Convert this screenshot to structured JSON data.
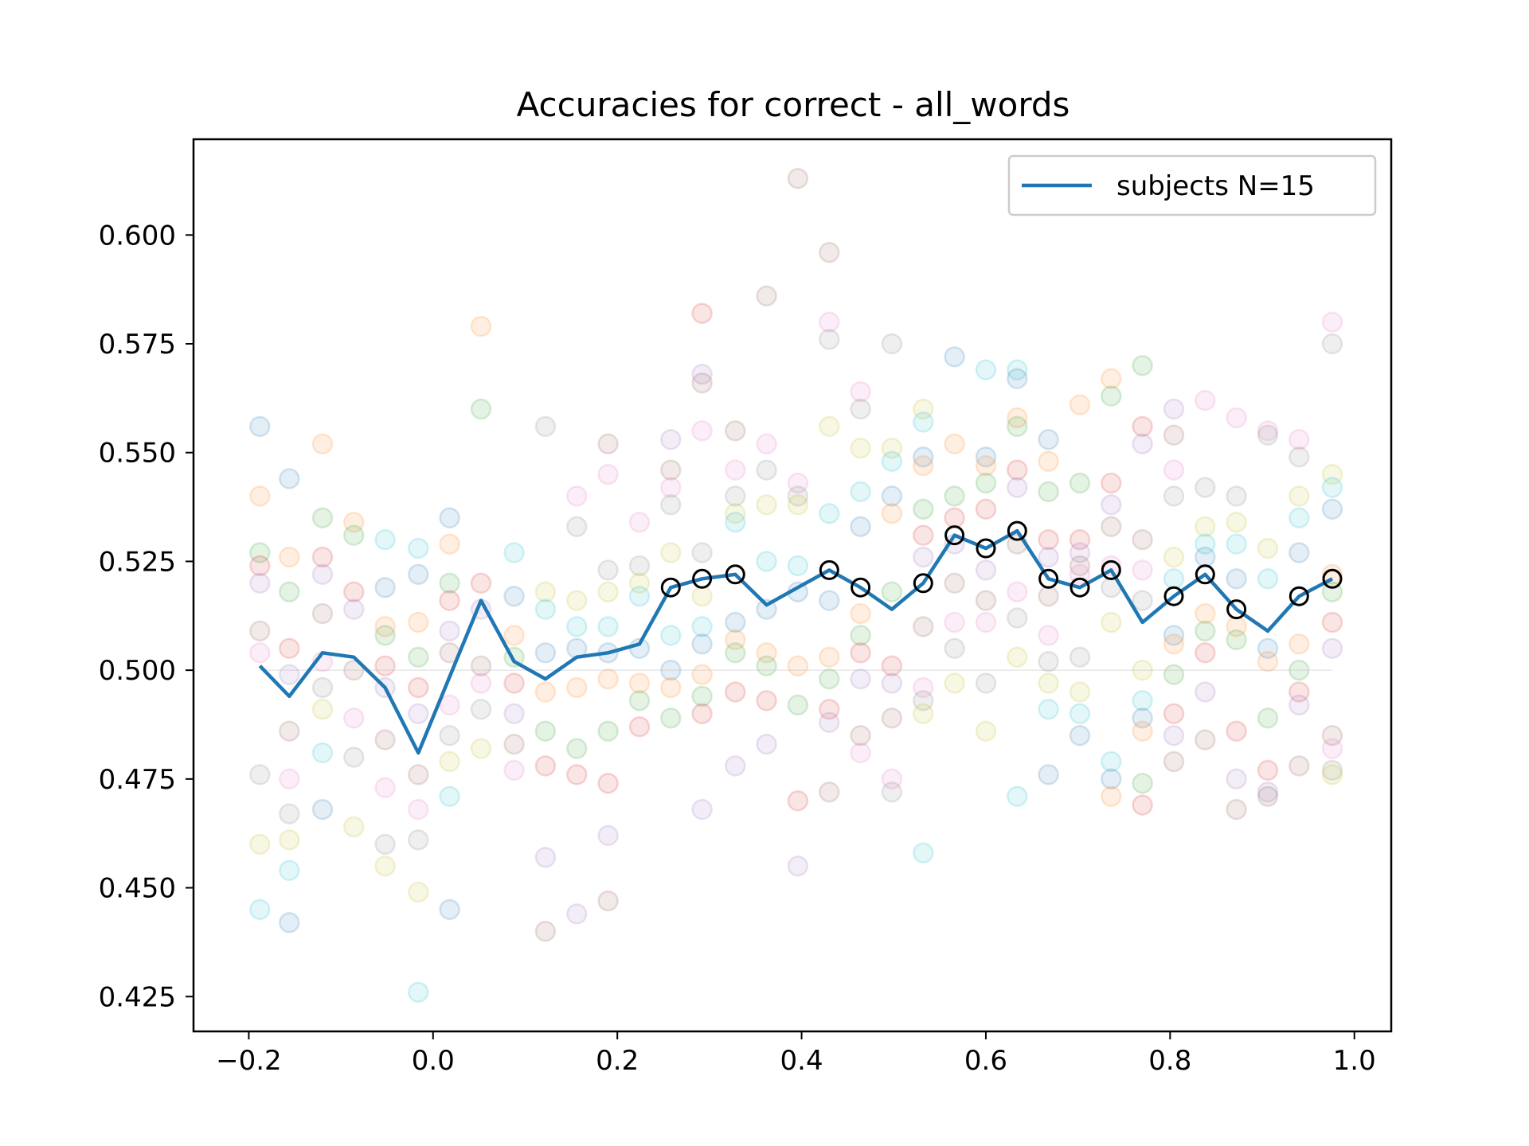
{
  "chart_data": {
    "type": "line",
    "title": "Accuracies for correct - all_words",
    "xlabel": "",
    "ylabel": "",
    "xlim": [
      -0.26,
      1.04
    ],
    "ylim": [
      0.417,
      0.622
    ],
    "x_ticks": [
      -0.2,
      0.0,
      0.2,
      0.4,
      0.6,
      0.8,
      1.0
    ],
    "x_tick_labels": [
      "−0.2",
      "0.0",
      "0.2",
      "0.4",
      "0.6",
      "0.8",
      "1.0"
    ],
    "y_ticks": [
      0.425,
      0.45,
      0.475,
      0.5,
      0.525,
      0.55,
      0.575,
      0.6
    ],
    "y_tick_labels": [
      "0.425",
      "0.450",
      "0.475",
      "0.500",
      "0.525",
      "0.550",
      "0.575",
      "0.600"
    ],
    "chance_level": 0.5,
    "grid": false,
    "legend": {
      "position": "top-right",
      "entries": [
        {
          "label": "subjects N=15",
          "color": "#1f77b4"
        }
      ]
    },
    "series": [
      {
        "name": "subjects N=15",
        "color": "#1f77b4",
        "x": [
          -0.188,
          -0.156,
          -0.12,
          -0.086,
          -0.052,
          -0.016,
          0.052,
          0.088,
          0.122,
          0.156,
          0.19,
          0.224,
          0.258,
          0.292,
          0.328,
          0.362,
          0.396,
          0.43,
          0.464,
          0.498,
          0.532,
          0.566,
          0.6,
          0.634,
          0.668,
          0.702,
          0.736,
          0.77,
          0.804,
          0.838,
          0.872,
          0.906,
          0.94,
          0.976
        ],
        "values": [
          0.501,
          0.494,
          0.504,
          0.503,
          0.496,
          0.481,
          0.516,
          0.502,
          0.498,
          0.503,
          0.504,
          0.506,
          0.519,
          0.521,
          0.522,
          0.515,
          0.519,
          0.523,
          0.519,
          0.514,
          0.52,
          0.531,
          0.528,
          0.532,
          0.521,
          0.519,
          0.523,
          0.511,
          0.517,
          0.522,
          0.514,
          0.509,
          0.517,
          0.521
        ]
      }
    ],
    "significant_x": [
      0.258,
      0.292,
      0.328,
      0.43,
      0.464,
      0.532,
      0.566,
      0.6,
      0.634,
      0.668,
      0.702,
      0.736,
      0.804,
      0.838,
      0.872,
      0.94,
      0.976
    ],
    "significant_marker_color": "#000000",
    "subject_colors": [
      "#1f77b4",
      "#ff7f0e",
      "#2ca02c",
      "#d62728",
      "#9467bd",
      "#8c564b",
      "#e377c2",
      "#7f7f7f",
      "#bcbd22",
      "#17becf"
    ],
    "subject_points": [
      [
        -0.188,
        0.556
      ],
      [
        -0.188,
        0.54
      ],
      [
        -0.188,
        0.527
      ],
      [
        -0.188,
        0.524
      ],
      [
        -0.188,
        0.52
      ],
      [
        -0.188,
        0.509
      ],
      [
        -0.188,
        0.504
      ],
      [
        -0.188,
        0.476
      ],
      [
        -0.188,
        0.46
      ],
      [
        -0.188,
        0.445
      ],
      [
        -0.156,
        0.544
      ],
      [
        -0.156,
        0.526
      ],
      [
        -0.156,
        0.518
      ],
      [
        -0.156,
        0.505
      ],
      [
        -0.156,
        0.499
      ],
      [
        -0.156,
        0.486
      ],
      [
        -0.156,
        0.475
      ],
      [
        -0.156,
        0.467
      ],
      [
        -0.156,
        0.461
      ],
      [
        -0.156,
        0.454
      ],
      [
        -0.156,
        0.442
      ],
      [
        -0.12,
        0.552
      ],
      [
        -0.12,
        0.535
      ],
      [
        -0.12,
        0.526
      ],
      [
        -0.12,
        0.522
      ],
      [
        -0.12,
        0.513
      ],
      [
        -0.12,
        0.502
      ],
      [
        -0.12,
        0.496
      ],
      [
        -0.12,
        0.491
      ],
      [
        -0.12,
        0.481
      ],
      [
        -0.12,
        0.468
      ],
      [
        -0.086,
        0.534
      ],
      [
        -0.086,
        0.531
      ],
      [
        -0.086,
        0.518
      ],
      [
        -0.086,
        0.514
      ],
      [
        -0.086,
        0.5
      ],
      [
        -0.086,
        0.489
      ],
      [
        -0.086,
        0.48
      ],
      [
        -0.086,
        0.464
      ],
      [
        -0.052,
        0.53
      ],
      [
        -0.052,
        0.519
      ],
      [
        -0.052,
        0.51
      ],
      [
        -0.052,
        0.508
      ],
      [
        -0.052,
        0.501
      ],
      [
        -0.052,
        0.496
      ],
      [
        -0.052,
        0.484
      ],
      [
        -0.052,
        0.473
      ],
      [
        -0.052,
        0.46
      ],
      [
        -0.052,
        0.455
      ],
      [
        -0.016,
        0.528
      ],
      [
        -0.016,
        0.522
      ],
      [
        -0.016,
        0.511
      ],
      [
        -0.016,
        0.503
      ],
      [
        -0.016,
        0.496
      ],
      [
        -0.016,
        0.49
      ],
      [
        -0.016,
        0.476
      ],
      [
        -0.016,
        0.468
      ],
      [
        -0.016,
        0.461
      ],
      [
        -0.016,
        0.449
      ],
      [
        -0.016,
        0.426
      ],
      [
        0.018,
        0.535
      ],
      [
        0.018,
        0.529
      ],
      [
        0.018,
        0.52
      ],
      [
        0.018,
        0.516
      ],
      [
        0.018,
        0.509
      ],
      [
        0.018,
        0.504
      ],
      [
        0.018,
        0.492
      ],
      [
        0.018,
        0.485
      ],
      [
        0.018,
        0.479
      ],
      [
        0.018,
        0.471
      ],
      [
        0.018,
        0.445
      ],
      [
        0.052,
        0.579
      ],
      [
        0.052,
        0.56
      ],
      [
        0.052,
        0.52
      ],
      [
        0.052,
        0.514
      ],
      [
        0.052,
        0.501
      ],
      [
        0.052,
        0.497
      ],
      [
        0.052,
        0.491
      ],
      [
        0.052,
        0.482
      ],
      [
        0.088,
        0.527
      ],
      [
        0.088,
        0.517
      ],
      [
        0.088,
        0.508
      ],
      [
        0.088,
        0.503
      ],
      [
        0.088,
        0.497
      ],
      [
        0.088,
        0.49
      ],
      [
        0.088,
        0.483
      ],
      [
        0.088,
        0.477
      ],
      [
        0.122,
        0.556
      ],
      [
        0.122,
        0.518
      ],
      [
        0.122,
        0.514
      ],
      [
        0.122,
        0.504
      ],
      [
        0.122,
        0.495
      ],
      [
        0.122,
        0.486
      ],
      [
        0.122,
        0.478
      ],
      [
        0.122,
        0.457
      ],
      [
        0.122,
        0.44
      ],
      [
        0.156,
        0.54
      ],
      [
        0.156,
        0.533
      ],
      [
        0.156,
        0.516
      ],
      [
        0.156,
        0.51
      ],
      [
        0.156,
        0.505
      ],
      [
        0.156,
        0.496
      ],
      [
        0.156,
        0.482
      ],
      [
        0.156,
        0.476
      ],
      [
        0.156,
        0.444
      ],
      [
        0.19,
        0.552
      ],
      [
        0.19,
        0.545
      ],
      [
        0.19,
        0.523
      ],
      [
        0.19,
        0.518
      ],
      [
        0.19,
        0.51
      ],
      [
        0.19,
        0.504
      ],
      [
        0.19,
        0.498
      ],
      [
        0.19,
        0.486
      ],
      [
        0.19,
        0.474
      ],
      [
        0.19,
        0.462
      ],
      [
        0.19,
        0.447
      ],
      [
        0.224,
        0.534
      ],
      [
        0.224,
        0.524
      ],
      [
        0.224,
        0.52
      ],
      [
        0.224,
        0.517
      ],
      [
        0.224,
        0.505
      ],
      [
        0.224,
        0.497
      ],
      [
        0.224,
        0.493
      ],
      [
        0.224,
        0.487
      ],
      [
        0.258,
        0.553
      ],
      [
        0.258,
        0.546
      ],
      [
        0.258,
        0.542
      ],
      [
        0.258,
        0.538
      ],
      [
        0.258,
        0.527
      ],
      [
        0.258,
        0.508
      ],
      [
        0.258,
        0.5
      ],
      [
        0.258,
        0.496
      ],
      [
        0.258,
        0.489
      ],
      [
        0.292,
        0.582
      ],
      [
        0.292,
        0.568
      ],
      [
        0.292,
        0.566
      ],
      [
        0.292,
        0.555
      ],
      [
        0.292,
        0.527
      ],
      [
        0.292,
        0.517
      ],
      [
        0.292,
        0.51
      ],
      [
        0.292,
        0.506
      ],
      [
        0.292,
        0.499
      ],
      [
        0.292,
        0.494
      ],
      [
        0.292,
        0.49
      ],
      [
        0.292,
        0.468
      ],
      [
        0.328,
        0.555
      ],
      [
        0.328,
        0.546
      ],
      [
        0.328,
        0.54
      ],
      [
        0.328,
        0.536
      ],
      [
        0.328,
        0.534
      ],
      [
        0.328,
        0.511
      ],
      [
        0.328,
        0.507
      ],
      [
        0.328,
        0.504
      ],
      [
        0.328,
        0.495
      ],
      [
        0.328,
        0.478
      ],
      [
        0.362,
        0.586
      ],
      [
        0.362,
        0.552
      ],
      [
        0.362,
        0.546
      ],
      [
        0.362,
        0.538
      ],
      [
        0.362,
        0.525
      ],
      [
        0.362,
        0.514
      ],
      [
        0.362,
        0.504
      ],
      [
        0.362,
        0.501
      ],
      [
        0.362,
        0.493
      ],
      [
        0.362,
        0.483
      ],
      [
        0.396,
        0.613
      ],
      [
        0.396,
        0.543
      ],
      [
        0.396,
        0.54
      ],
      [
        0.396,
        0.538
      ],
      [
        0.396,
        0.524
      ],
      [
        0.396,
        0.518
      ],
      [
        0.396,
        0.501
      ],
      [
        0.396,
        0.492
      ],
      [
        0.396,
        0.47
      ],
      [
        0.396,
        0.455
      ],
      [
        0.43,
        0.596
      ],
      [
        0.43,
        0.58
      ],
      [
        0.43,
        0.576
      ],
      [
        0.43,
        0.556
      ],
      [
        0.43,
        0.536
      ],
      [
        0.43,
        0.516
      ],
      [
        0.43,
        0.503
      ],
      [
        0.43,
        0.498
      ],
      [
        0.43,
        0.491
      ],
      [
        0.43,
        0.488
      ],
      [
        0.43,
        0.472
      ],
      [
        0.464,
        0.564
      ],
      [
        0.464,
        0.56
      ],
      [
        0.464,
        0.551
      ],
      [
        0.464,
        0.541
      ],
      [
        0.464,
        0.533
      ],
      [
        0.464,
        0.513
      ],
      [
        0.464,
        0.508
      ],
      [
        0.464,
        0.504
      ],
      [
        0.464,
        0.498
      ],
      [
        0.464,
        0.485
      ],
      [
        0.464,
        0.481
      ],
      [
        0.498,
        0.575
      ],
      [
        0.498,
        0.551
      ],
      [
        0.498,
        0.548
      ],
      [
        0.498,
        0.54
      ],
      [
        0.498,
        0.536
      ],
      [
        0.498,
        0.518
      ],
      [
        0.498,
        0.501
      ],
      [
        0.498,
        0.497
      ],
      [
        0.498,
        0.489
      ],
      [
        0.498,
        0.475
      ],
      [
        0.498,
        0.472
      ],
      [
        0.532,
        0.56
      ],
      [
        0.532,
        0.557
      ],
      [
        0.532,
        0.549
      ],
      [
        0.532,
        0.547
      ],
      [
        0.532,
        0.537
      ],
      [
        0.532,
        0.531
      ],
      [
        0.532,
        0.526
      ],
      [
        0.532,
        0.51
      ],
      [
        0.532,
        0.496
      ],
      [
        0.532,
        0.493
      ],
      [
        0.532,
        0.49
      ],
      [
        0.532,
        0.458
      ],
      [
        0.566,
        0.572
      ],
      [
        0.566,
        0.552
      ],
      [
        0.566,
        0.54
      ],
      [
        0.566,
        0.535
      ],
      [
        0.566,
        0.529
      ],
      [
        0.566,
        0.52
      ],
      [
        0.566,
        0.511
      ],
      [
        0.566,
        0.505
      ],
      [
        0.566,
        0.497
      ],
      [
        0.6,
        0.569
      ],
      [
        0.6,
        0.549
      ],
      [
        0.6,
        0.547
      ],
      [
        0.6,
        0.543
      ],
      [
        0.6,
        0.537
      ],
      [
        0.6,
        0.523
      ],
      [
        0.6,
        0.516
      ],
      [
        0.6,
        0.511
      ],
      [
        0.6,
        0.497
      ],
      [
        0.6,
        0.486
      ],
      [
        0.634,
        0.569
      ],
      [
        0.634,
        0.567
      ],
      [
        0.634,
        0.558
      ],
      [
        0.634,
        0.556
      ],
      [
        0.634,
        0.546
      ],
      [
        0.634,
        0.542
      ],
      [
        0.634,
        0.529
      ],
      [
        0.634,
        0.518
      ],
      [
        0.634,
        0.512
      ],
      [
        0.634,
        0.503
      ],
      [
        0.634,
        0.471
      ],
      [
        0.668,
        0.553
      ],
      [
        0.668,
        0.548
      ],
      [
        0.668,
        0.541
      ],
      [
        0.668,
        0.53
      ],
      [
        0.668,
        0.526
      ],
      [
        0.668,
        0.517
      ],
      [
        0.668,
        0.508
      ],
      [
        0.668,
        0.502
      ],
      [
        0.668,
        0.497
      ],
      [
        0.668,
        0.491
      ],
      [
        0.668,
        0.476
      ],
      [
        0.702,
        0.561
      ],
      [
        0.702,
        0.543
      ],
      [
        0.702,
        0.53
      ],
      [
        0.702,
        0.527
      ],
      [
        0.702,
        0.524
      ],
      [
        0.702,
        0.522
      ],
      [
        0.702,
        0.503
      ],
      [
        0.702,
        0.495
      ],
      [
        0.702,
        0.49
      ],
      [
        0.702,
        0.485
      ],
      [
        0.736,
        0.567
      ],
      [
        0.736,
        0.563
      ],
      [
        0.736,
        0.543
      ],
      [
        0.736,
        0.538
      ],
      [
        0.736,
        0.533
      ],
      [
        0.736,
        0.524
      ],
      [
        0.736,
        0.519
      ],
      [
        0.736,
        0.511
      ],
      [
        0.736,
        0.479
      ],
      [
        0.736,
        0.475
      ],
      [
        0.736,
        0.471
      ],
      [
        0.77,
        0.57
      ],
      [
        0.77,
        0.556
      ],
      [
        0.77,
        0.552
      ],
      [
        0.77,
        0.53
      ],
      [
        0.77,
        0.523
      ],
      [
        0.77,
        0.516
      ],
      [
        0.77,
        0.5
      ],
      [
        0.77,
        0.493
      ],
      [
        0.77,
        0.489
      ],
      [
        0.77,
        0.486
      ],
      [
        0.77,
        0.474
      ],
      [
        0.77,
        0.469
      ],
      [
        0.804,
        0.56
      ],
      [
        0.804,
        0.554
      ],
      [
        0.804,
        0.546
      ],
      [
        0.804,
        0.54
      ],
      [
        0.804,
        0.526
      ],
      [
        0.804,
        0.521
      ],
      [
        0.804,
        0.508
      ],
      [
        0.804,
        0.506
      ],
      [
        0.804,
        0.499
      ],
      [
        0.804,
        0.49
      ],
      [
        0.804,
        0.485
      ],
      [
        0.804,
        0.479
      ],
      [
        0.838,
        0.562
      ],
      [
        0.838,
        0.542
      ],
      [
        0.838,
        0.533
      ],
      [
        0.838,
        0.529
      ],
      [
        0.838,
        0.526
      ],
      [
        0.838,
        0.513
      ],
      [
        0.838,
        0.509
      ],
      [
        0.838,
        0.504
      ],
      [
        0.838,
        0.495
      ],
      [
        0.838,
        0.484
      ],
      [
        0.872,
        0.558
      ],
      [
        0.872,
        0.54
      ],
      [
        0.872,
        0.534
      ],
      [
        0.872,
        0.529
      ],
      [
        0.872,
        0.521
      ],
      [
        0.872,
        0.51
      ],
      [
        0.872,
        0.507
      ],
      [
        0.872,
        0.486
      ],
      [
        0.872,
        0.475
      ],
      [
        0.872,
        0.468
      ],
      [
        0.906,
        0.555
      ],
      [
        0.906,
        0.554
      ],
      [
        0.906,
        0.528
      ],
      [
        0.906,
        0.521
      ],
      [
        0.906,
        0.505
      ],
      [
        0.906,
        0.502
      ],
      [
        0.906,
        0.489
      ],
      [
        0.906,
        0.477
      ],
      [
        0.906,
        0.472
      ],
      [
        0.906,
        0.471
      ],
      [
        0.94,
        0.553
      ],
      [
        0.94,
        0.549
      ],
      [
        0.94,
        0.54
      ],
      [
        0.94,
        0.535
      ],
      [
        0.94,
        0.527
      ],
      [
        0.94,
        0.506
      ],
      [
        0.94,
        0.5
      ],
      [
        0.94,
        0.495
      ],
      [
        0.94,
        0.492
      ],
      [
        0.94,
        0.478
      ],
      [
        0.976,
        0.58
      ],
      [
        0.976,
        0.575
      ],
      [
        0.976,
        0.545
      ],
      [
        0.976,
        0.542
      ],
      [
        0.976,
        0.537
      ],
      [
        0.976,
        0.522
      ],
      [
        0.976,
        0.518
      ],
      [
        0.976,
        0.511
      ],
      [
        0.976,
        0.505
      ],
      [
        0.976,
        0.485
      ],
      [
        0.976,
        0.482
      ],
      [
        0.976,
        0.477
      ],
      [
        0.976,
        0.476
      ]
    ]
  }
}
